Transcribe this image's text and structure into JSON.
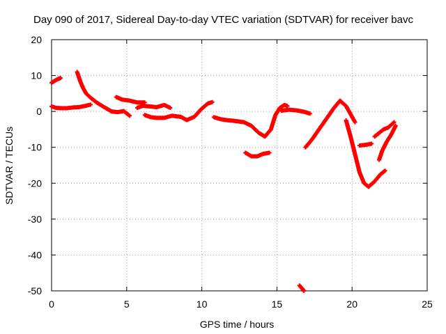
{
  "chart_data": {
    "type": "scatter",
    "title": "Day 090 of 2017, Sidereal Day-to-day VTEC variation (SDTVAR) for receiver bavc",
    "xlabel": "GPS time / hours",
    "ylabel": "SDTVAR / TECUs",
    "xlim": [
      0,
      25
    ],
    "ylim": [
      -50,
      20
    ],
    "xticks": [
      0,
      5,
      10,
      15,
      20,
      25
    ],
    "yticks": [
      20,
      10,
      0,
      -10,
      -20,
      -30,
      -40,
      -50
    ],
    "grid": true,
    "marker": "plus",
    "color": "#ff0000",
    "series": [
      {
        "name": "seg1",
        "x": [
          0.0,
          0.2,
          0.4,
          0.6
        ],
        "y": [
          8,
          8.5,
          9,
          9.3
        ]
      },
      {
        "name": "seg2",
        "x": [
          0.0,
          0.3,
          0.6,
          1.0,
          1.4,
          1.8,
          2.2,
          2.6
        ],
        "y": [
          1.4,
          1.0,
          0.9,
          0.9,
          1.1,
          1.2,
          1.5,
          1.9
        ]
      },
      {
        "name": "seg3",
        "x": [
          1.7,
          1.9,
          2.1,
          2.3,
          2.6,
          3.0,
          3.5,
          4.0
        ],
        "y": [
          11,
          8.5,
          6.5,
          5,
          3.8,
          2.5,
          1.2,
          0.0
        ]
      },
      {
        "name": "seg4",
        "x": [
          4.0,
          4.4,
          4.8,
          5.2
        ],
        "y": [
          0,
          -0.2,
          0.1,
          -1.2
        ]
      },
      {
        "name": "seg5",
        "x": [
          4.3,
          4.7,
          5.2,
          5.7,
          6.2
        ],
        "y": [
          4.0,
          3.3,
          3.0,
          2.5,
          2.5
        ]
      },
      {
        "name": "seg6",
        "x": [
          5.7,
          6.1,
          6.5,
          7.0,
          7.5,
          7.9
        ],
        "y": [
          1.0,
          1.6,
          1.4,
          1.2,
          1.8,
          1.0
        ]
      },
      {
        "name": "seg7",
        "x": [
          6.2,
          6.6,
          7.0,
          7.5,
          8.0,
          8.6,
          9.0,
          9.5,
          10.0,
          10.4,
          10.7
        ],
        "y": [
          -1.0,
          -1.6,
          -1.8,
          -1.8,
          -1.2,
          -1.5,
          -2.4,
          -1.5,
          0.8,
          2.2,
          2.6
        ]
      },
      {
        "name": "seg8",
        "x": [
          10.8,
          11.3,
          11.8,
          12.3,
          12.8,
          13.3,
          13.8,
          14.2,
          14.6,
          14.9,
          15.2,
          15.5,
          15.7
        ],
        "y": [
          -1.6,
          -2.2,
          -2.5,
          -2.7,
          -3.0,
          -4.0,
          -6.0,
          -7.0,
          -5.0,
          -1.0,
          1.0,
          1.8,
          1.5
        ]
      },
      {
        "name": "seg9",
        "x": [
          12.9,
          13.3,
          13.7,
          14.1,
          14.5
        ],
        "y": [
          -11.5,
          -12.5,
          -12.5,
          -11.8,
          -11.5
        ]
      },
      {
        "name": "seg10",
        "x": [
          15.3,
          15.8,
          16.3,
          16.8,
          17.2
        ],
        "y": [
          0.2,
          0.5,
          0.3,
          -0.1,
          -0.6
        ]
      },
      {
        "name": "seg11",
        "x": [
          16.5,
          16.7,
          16.8
        ],
        "y": [
          -48.5,
          -49.5,
          -50.0
        ]
      },
      {
        "name": "seg12",
        "x": [
          16.9,
          17.3,
          17.8,
          18.3,
          18.8,
          19.2,
          19.6,
          20.0,
          20.2
        ],
        "y": [
          -10.0,
          -8.0,
          -5.0,
          -2.0,
          1.0,
          3.0,
          1.5,
          -1.5,
          -3.0
        ]
      },
      {
        "name": "seg13",
        "x": [
          19.6,
          19.9,
          20.2,
          20.5,
          20.8,
          21.1,
          21.5,
          21.9,
          22.2
        ],
        "y": [
          -2.5,
          -7.0,
          -12.0,
          -17.0,
          -20.0,
          -21.0,
          -19.5,
          -17.5,
          -16.5
        ]
      },
      {
        "name": "seg14",
        "x": [
          20.5,
          20.9,
          21.3
        ],
        "y": [
          -9.5,
          -9.3,
          -9.0
        ]
      },
      {
        "name": "seg15",
        "x": [
          21.5,
          21.8,
          22.1,
          22.4,
          22.8
        ],
        "y": [
          -7.0,
          -6.0,
          -5.0,
          -4.5,
          -3.0
        ]
      },
      {
        "name": "seg16",
        "x": [
          21.8,
          22.0,
          22.3,
          22.6,
          22.9
        ],
        "y": [
          -13.5,
          -11.0,
          -8.5,
          -6.5,
          -4.0
        ]
      }
    ]
  }
}
